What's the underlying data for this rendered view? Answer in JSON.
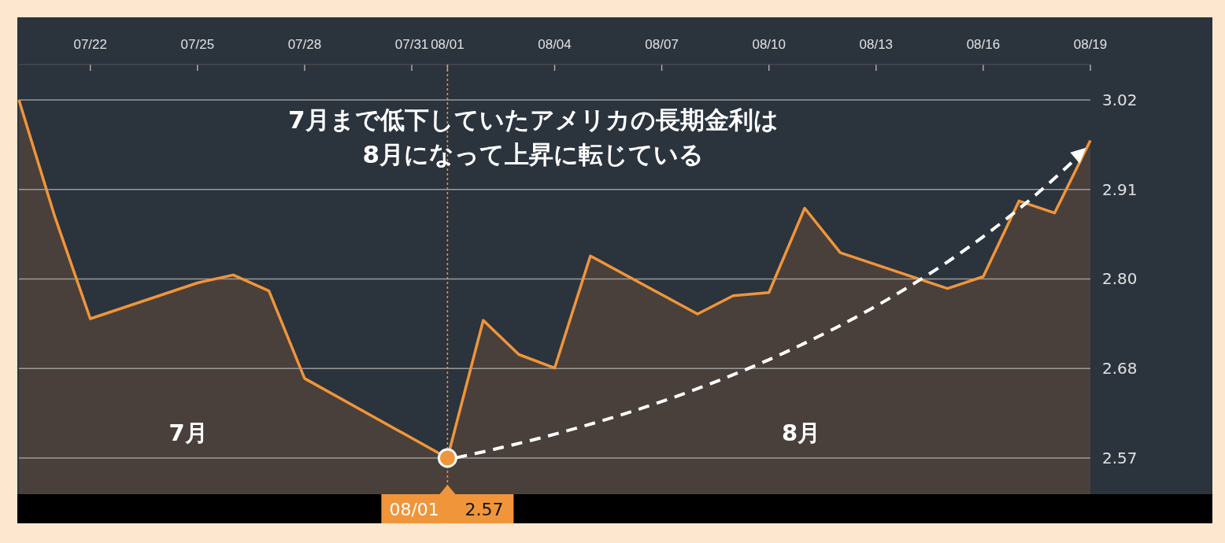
{
  "chart_data": {
    "type": "area",
    "x": [
      "--07-20",
      "--07-21",
      "--07-22",
      "--07-25",
      "--07-26",
      "--07-27",
      "--07-28",
      "--08-01",
      "--08-02",
      "--08-03",
      "--08-04",
      "--08-05",
      "--08-08",
      "--08-09",
      "--08-10",
      "--08-11",
      "--08-12",
      "--08-15",
      "--08-16",
      "--08-17",
      "--08-18",
      "--08-19"
    ],
    "series": [
      {
        "color": "#f0953a",
        "values": [
          3.02,
          2.874,
          2.745,
          2.79,
          2.8,
          2.78,
          2.67,
          2.57,
          2.743,
          2.7,
          2.683,
          2.824,
          2.751,
          2.774,
          2.778,
          2.884,
          2.828,
          2.783,
          2.798,
          2.893,
          2.878,
          2.969
        ]
      }
    ],
    "xlim": [
      "--07-20",
      "--08-19"
    ],
    "xticks": [
      {
        "value": "--07-22",
        "label": "07/22"
      },
      {
        "value": "--07-25",
        "label": "07/25"
      },
      {
        "value": "--07-28",
        "label": "07/28"
      },
      {
        "value": "--07-31",
        "label": "07/31"
      },
      {
        "value": "--08-01",
        "label": "08/01"
      },
      {
        "value": "--08-04",
        "label": "08/04"
      },
      {
        "value": "--08-07",
        "label": "08/07"
      },
      {
        "value": "--08-10",
        "label": "08/10"
      },
      {
        "value": "--08-13",
        "label": "08/13"
      },
      {
        "value": "--08-16",
        "label": "08/16"
      },
      {
        "value": "--08-19",
        "label": "08/19"
      }
    ],
    "ylim": [
      2.5245,
      3.0645
    ],
    "yticks": [
      2.57,
      {
        "value": 2.6825,
        "label": "2.68"
      },
      {
        "value": 2.795,
        "label": "2.80"
      },
      {
        "value": 2.9075,
        "label": "2.91"
      },
      3.02
    ],
    "grid": "y",
    "ref_lines": [
      {
        "axis": "x",
        "value": "--08-01",
        "label": null,
        "color": "#f0953a",
        "line_style": "dotted"
      }
    ],
    "annotations": [
      "7月まで低下していたアメリカの長期金利は\n8月になって上昇に転じている",
      "7月",
      "8月",
      {
        "text": "08/01",
        "x": "--08-01",
        "y": 2.57
      },
      {
        "text": "2.57",
        "x": "--08-01",
        "y": 2.57
      }
    ]
  }
}
